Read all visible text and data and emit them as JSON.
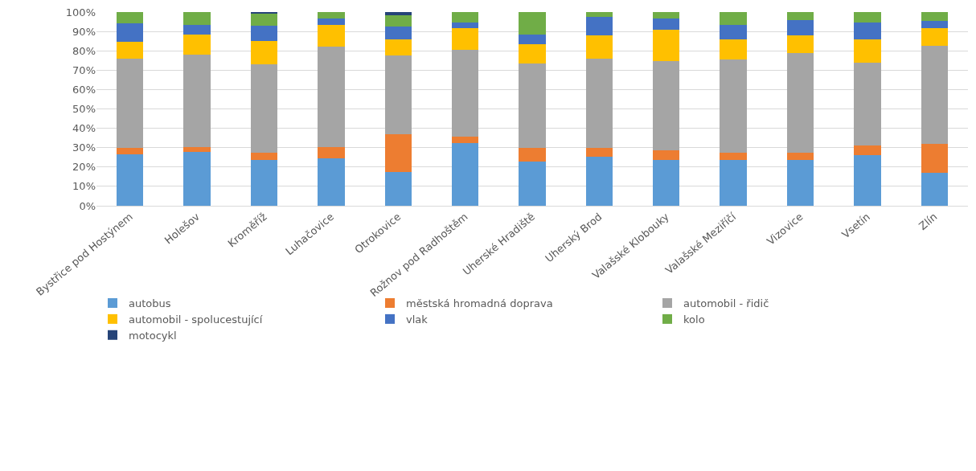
{
  "chart_data": {
    "type": "bar",
    "stacked": true,
    "categories": [
      "Bystřice pod Hostýnem",
      "Holešov",
      "Kroměříž",
      "Luhačovice",
      "Otrokovice",
      "Rožnov pod Radhoštěm",
      "Uherské Hradiště",
      "Uherský Brod",
      "Valašské Klobouky",
      "Valašské Meziříčí",
      "Vizovice",
      "Vsetín",
      "Zlín"
    ],
    "series": [
      {
        "name": "autobus",
        "color": "#5b9bd5",
        "values": [
          26.5,
          28,
          23.5,
          24.5,
          17.5,
          32.5,
          23,
          25.5,
          23.5,
          23.5,
          23.5,
          26,
          17
        ]
      },
      {
        "name": "městská hromadná doprava",
        "color": "#ed7d31",
        "values": [
          3.5,
          2.5,
          4,
          6,
          19.5,
          3,
          7,
          4.5,
          5,
          4,
          4,
          5,
          15
        ]
      },
      {
        "name": "automobil - řidič",
        "color": "#a5a5a5",
        "values": [
          46,
          47.5,
          45.5,
          51.5,
          40.5,
          45,
          43.5,
          46,
          46,
          48,
          51.5,
          43,
          50.5
        ]
      },
      {
        "name": "automobil - spolucestující",
        "color": "#ffc000",
        "values": [
          8.5,
          10.5,
          12,
          11.5,
          8.5,
          11,
          10,
          12,
          16.5,
          10.5,
          9,
          12,
          9
        ]
      },
      {
        "name": "vlak",
        "color": "#4472c4",
        "values": [
          9.5,
          5,
          8,
          3,
          6.5,
          3,
          5,
          9.5,
          5.5,
          7.5,
          8,
          8.5,
          4
        ]
      },
      {
        "name": "kolo",
        "color": "#70ad47",
        "values": [
          6,
          6.5,
          6,
          3.5,
          6,
          5.5,
          11.5,
          2.5,
          3.5,
          6.5,
          4,
          5.5,
          4.5
        ]
      },
      {
        "name": "motocykl",
        "color": "#264478",
        "values": [
          0,
          0,
          1,
          0,
          1.5,
          0,
          0,
          0,
          0,
          0,
          0,
          0,
          0
        ]
      }
    ],
    "ylim": [
      0,
      100
    ],
    "yticks": [
      {
        "value": 0,
        "label": "0%"
      },
      {
        "value": 10,
        "label": "10%"
      },
      {
        "value": 20,
        "label": "20%"
      },
      {
        "value": 30,
        "label": "30%"
      },
      {
        "value": 40,
        "label": "40%"
      },
      {
        "value": 50,
        "label": "50%"
      },
      {
        "value": 60,
        "label": "60%"
      },
      {
        "value": 70,
        "label": "70%"
      },
      {
        "value": 80,
        "label": "80%"
      },
      {
        "value": 90,
        "label": "90%"
      },
      {
        "value": 100,
        "label": "100%"
      }
    ],
    "grid": "y",
    "legend": "bottom"
  }
}
